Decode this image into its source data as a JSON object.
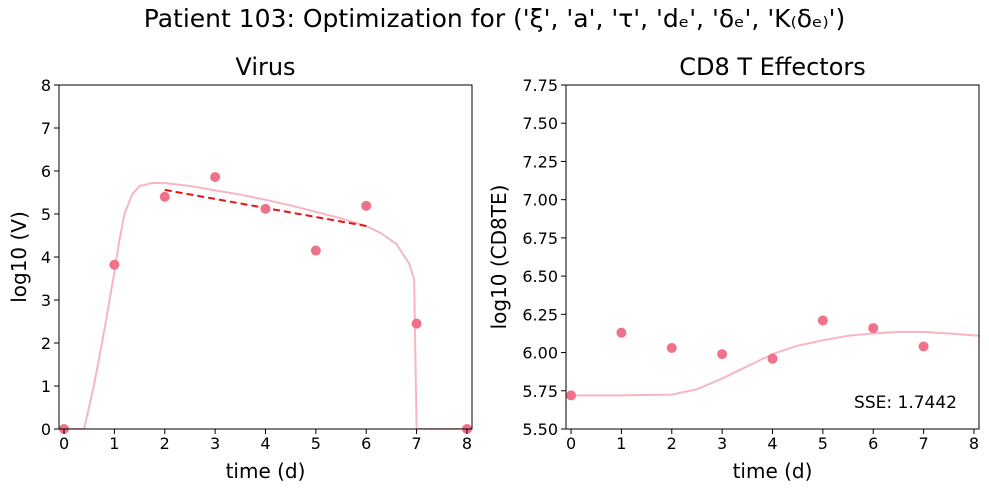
{
  "title": "Patient 103: Optimization for ('ξ', 'a', 'τ', 'dₑ', 'δₑ', 'K₍δₑ₎')",
  "chart_data": [
    {
      "type": "scatter",
      "title": "Virus",
      "xlabel": "time (d)",
      "ylabel": "log10 (V)",
      "xlim": [
        -0.1,
        8.1
      ],
      "ylim": [
        0,
        8
      ],
      "xticks": [
        "0",
        "1",
        "2",
        "3",
        "4",
        "5",
        "6",
        "7",
        "8"
      ],
      "yticks": [
        "0",
        "1",
        "2",
        "3",
        "4",
        "5",
        "6",
        "7",
        "8"
      ],
      "grid": false,
      "colors": {
        "points": "#f07189",
        "model": "#f7b6c2",
        "fit": "#ee1111"
      },
      "points": [
        {
          "x": 0,
          "y": 0
        },
        {
          "x": 1,
          "y": 3.82
        },
        {
          "x": 2,
          "y": 5.4
        },
        {
          "x": 3,
          "y": 5.86
        },
        {
          "x": 4,
          "y": 5.12
        },
        {
          "x": 5,
          "y": 4.15
        },
        {
          "x": 6,
          "y": 5.19
        },
        {
          "x": 7,
          "y": 2.45
        },
        {
          "x": 8,
          "y": 0
        }
      ],
      "model_curve": [
        {
          "x": 0.0,
          "y": 0
        },
        {
          "x": 0.4,
          "y": 0
        },
        {
          "x": 0.6,
          "y": 1.05
        },
        {
          "x": 0.8,
          "y": 2.3
        },
        {
          "x": 1.0,
          "y": 3.65
        },
        {
          "x": 1.1,
          "y": 4.4
        },
        {
          "x": 1.2,
          "y": 5.0
        },
        {
          "x": 1.35,
          "y": 5.45
        },
        {
          "x": 1.5,
          "y": 5.65
        },
        {
          "x": 1.75,
          "y": 5.72
        },
        {
          "x": 2.0,
          "y": 5.72
        },
        {
          "x": 2.5,
          "y": 5.65
        },
        {
          "x": 3.0,
          "y": 5.55
        },
        {
          "x": 3.5,
          "y": 5.45
        },
        {
          "x": 4.0,
          "y": 5.33
        },
        {
          "x": 4.5,
          "y": 5.2
        },
        {
          "x": 5.0,
          "y": 5.05
        },
        {
          "x": 5.5,
          "y": 4.9
        },
        {
          "x": 6.0,
          "y": 4.72
        },
        {
          "x": 6.3,
          "y": 4.55
        },
        {
          "x": 6.6,
          "y": 4.3
        },
        {
          "x": 6.85,
          "y": 3.85
        },
        {
          "x": 6.95,
          "y": 3.5
        },
        {
          "x": 7.0,
          "y": 0
        },
        {
          "x": 8.1,
          "y": 0
        }
      ],
      "fit_line": [
        {
          "x": 2,
          "y": 5.56
        },
        {
          "x": 6,
          "y": 4.72
        }
      ]
    },
    {
      "type": "scatter",
      "title": "CD8 T Effectors",
      "xlabel": "time (d)",
      "ylabel": "log10 (CD8TE)",
      "xlim": [
        -0.1,
        8.1
      ],
      "ylim": [
        5.5,
        7.75
      ],
      "xticks": [
        "0",
        "1",
        "2",
        "3",
        "4",
        "5",
        "6",
        "7",
        "8"
      ],
      "yticks": [
        "5.50",
        "5.75",
        "6.00",
        "6.25",
        "6.50",
        "6.75",
        "7.00",
        "7.25",
        "7.50",
        "7.75"
      ],
      "grid": false,
      "colors": {
        "points": "#f07189",
        "model": "#f7b6c2"
      },
      "points": [
        {
          "x": 0,
          "y": 5.72
        },
        {
          "x": 1,
          "y": 6.13
        },
        {
          "x": 2,
          "y": 6.03
        },
        {
          "x": 3,
          "y": 5.99
        },
        {
          "x": 4,
          "y": 5.96
        },
        {
          "x": 5,
          "y": 6.21
        },
        {
          "x": 6,
          "y": 6.16
        },
        {
          "x": 7,
          "y": 6.04
        }
      ],
      "model_curve": [
        {
          "x": 0.0,
          "y": 5.72
        },
        {
          "x": 1.0,
          "y": 5.72
        },
        {
          "x": 2.0,
          "y": 5.725
        },
        {
          "x": 2.5,
          "y": 5.76
        },
        {
          "x": 3.0,
          "y": 5.83
        },
        {
          "x": 3.5,
          "y": 5.91
        },
        {
          "x": 4.0,
          "y": 5.99
        },
        {
          "x": 4.5,
          "y": 6.045
        },
        {
          "x": 5.0,
          "y": 6.08
        },
        {
          "x": 5.5,
          "y": 6.11
        },
        {
          "x": 6.0,
          "y": 6.125
        },
        {
          "x": 6.5,
          "y": 6.135
        },
        {
          "x": 7.0,
          "y": 6.135
        },
        {
          "x": 7.5,
          "y": 6.125
        },
        {
          "x": 8.1,
          "y": 6.11
        }
      ],
      "annotation": "SSE: 1.7442"
    }
  ]
}
